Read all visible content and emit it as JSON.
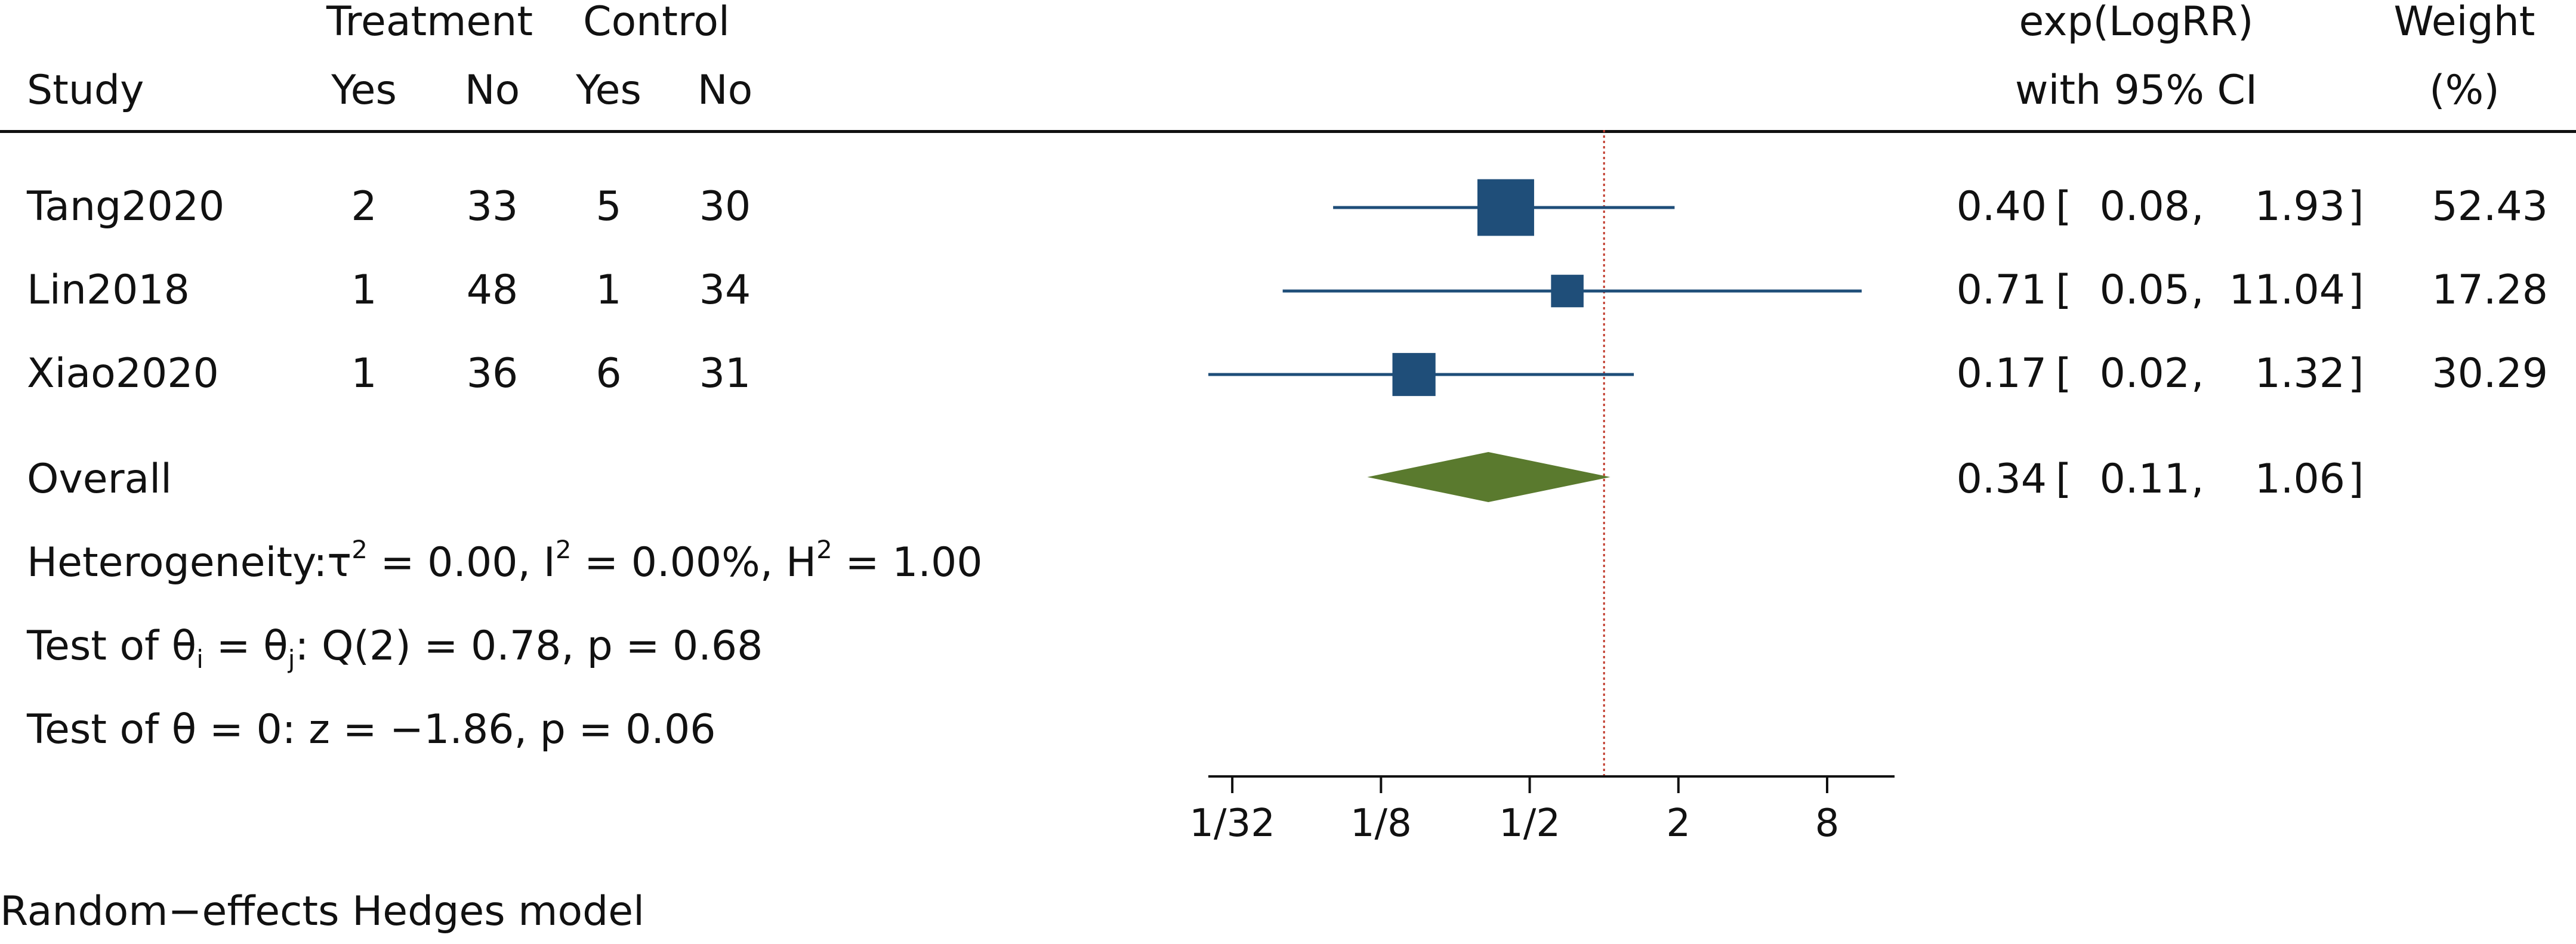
{
  "header": {
    "treatment": "Treatment",
    "control": "Control",
    "study": "Study",
    "yes": "Yes",
    "no": "No",
    "effect_line1": "exp(LogRR)",
    "effect_line2": "with 95% CI",
    "weight_line1": "Weight",
    "weight_line2": "(%)"
  },
  "rows": [
    {
      "study": "Tang2020",
      "t_yes": "2",
      "t_no": "33",
      "c_yes": "5",
      "c_no": "30",
      "est": "0.40",
      "lo": "0.08",
      "hi": "1.93",
      "weight": "52.43"
    },
    {
      "study": "Lin2018",
      "t_yes": "1",
      "t_no": "48",
      "c_yes": "1",
      "c_no": "34",
      "est": "0.71",
      "lo": "0.05",
      "hi": "11.04",
      "weight": "17.28"
    },
    {
      "study": "Xiao2020",
      "t_yes": "1",
      "t_no": "36",
      "c_yes": "6",
      "c_no": "31",
      "est": "0.17",
      "lo": "0.02",
      "hi": "1.32",
      "weight": "30.29"
    }
  ],
  "overall": {
    "label": "Overall",
    "est": "0.34",
    "lo": "0.11",
    "hi": "1.06"
  },
  "stats": {
    "het_prefix": "Heterogeneity:",
    "tau": "τ",
    "sq": "2",
    "het_tau_val": " = 0.00, I",
    "het_i_val": " = 0.00%, H",
    "het_h_val": " = 1.00",
    "test1_prefix": "Test of θ",
    "sub_i": "i",
    "eq_theta": " = θ",
    "sub_j": "j",
    "test1_suffix": ": Q(2) = 0.78, p = 0.68",
    "test2": "Test of θ = 0: z = −1.86, p = 0.06"
  },
  "footer": "Random−effects Hedges model",
  "colors": {
    "marker": "#1f4e79",
    "diamond": "#5a7a2e",
    "ref_line": "#c0392b",
    "axis": "#111111"
  },
  "chart_data": {
    "type": "forest",
    "x_scale": "log2",
    "xlim": [
      0.025,
      15
    ],
    "x_ticks": [
      0.03125,
      0.125,
      0.5,
      2,
      8
    ],
    "x_tick_labels": [
      "1/32",
      "1/8",
      "1/2",
      "2",
      "8"
    ],
    "reference_line": 1,
    "studies": [
      {
        "name": "Tang2020",
        "estimate": 0.4,
        "ci_low": 0.08,
        "ci_high": 1.93,
        "weight": 52.43
      },
      {
        "name": "Lin2018",
        "estimate": 0.71,
        "ci_low": 0.05,
        "ci_high": 11.04,
        "weight": 17.28
      },
      {
        "name": "Xiao2020",
        "estimate": 0.17,
        "ci_low": 0.02,
        "ci_high": 1.32,
        "weight": 30.29
      }
    ],
    "overall": {
      "estimate": 0.34,
      "ci_low": 0.11,
      "ci_high": 1.06
    }
  }
}
